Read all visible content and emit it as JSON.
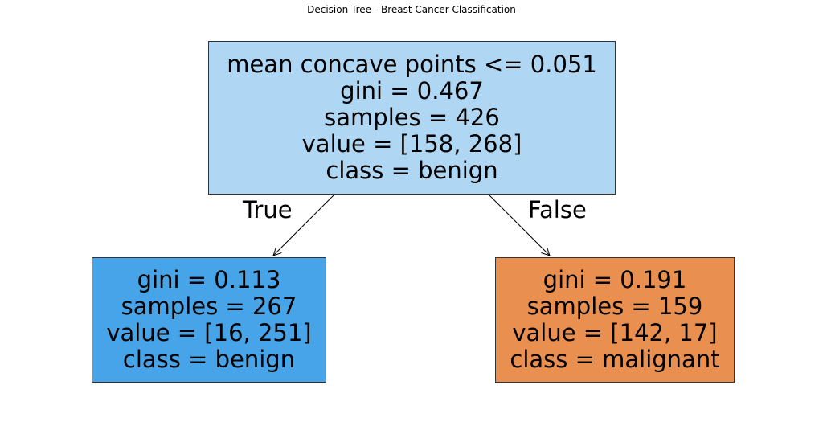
{
  "title": "Decision Tree - Breast Cancer Classification",
  "tree": {
    "root": {
      "lines": [
        "mean concave points <= 0.051",
        "gini = 0.467",
        "samples = 426",
        "value = [158, 268]",
        "class = benign"
      ],
      "fill": "#afd7f3"
    },
    "left": {
      "lines": [
        "gini = 0.113",
        "samples = 267",
        "value = [16, 251]",
        "class = benign"
      ],
      "fill": "#47a4e8"
    },
    "right": {
      "lines": [
        "gini = 0.191",
        "samples = 159",
        "value = [142, 17]",
        "class = malignant"
      ],
      "fill": "#e99051"
    },
    "edges": {
      "true_label": "True",
      "false_label": "False"
    }
  }
}
